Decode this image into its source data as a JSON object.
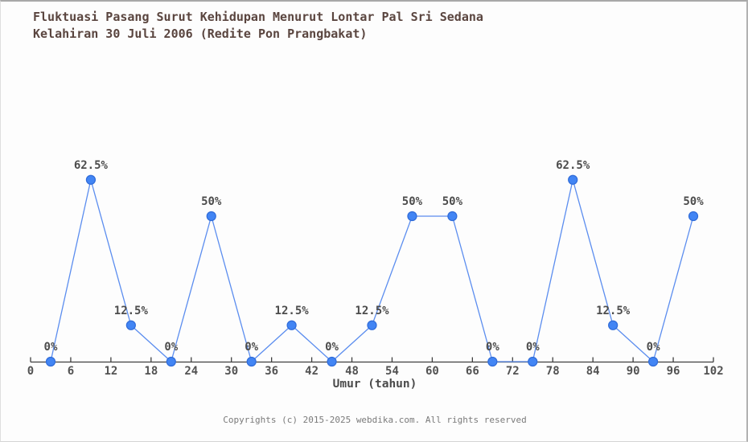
{
  "page": {
    "title_line1": "Fluktuasi Pasang Surut Kehidupan Menurut Lontar Pal Sri Sedana",
    "title_line2": "Kelahiran 30 Juli 2006 (Redite Pon Prangbakat)",
    "footer": "Copyrights (c) 2015-2025 webdika.com. All rights reserved"
  },
  "chart_data": {
    "type": "line",
    "title": "Fluktuasi Pasang Surut Kehidupan Menurut Lontar Pal Sri Sedana Kelahiran 30 Juli 2006 (Redite Pon Prangbakat)",
    "xlabel": "Umur (tahun)",
    "ylabel": "",
    "x": [
      3,
      9,
      15,
      21,
      27,
      33,
      39,
      45,
      51,
      57,
      63,
      69,
      75,
      81,
      87,
      93,
      99
    ],
    "values": [
      0,
      62.5,
      12.5,
      0,
      50,
      0,
      12.5,
      0,
      12.5,
      50,
      50,
      0,
      0,
      62.5,
      12.5,
      0,
      50
    ],
    "point_labels": [
      "0%",
      "62.5%",
      "12.5%",
      "0%",
      "50%",
      "0%",
      "12.5%",
      "0%",
      "12.5%",
      "50%",
      "50%",
      "0%",
      "0%",
      "62.5%",
      "12.5%",
      "0%",
      "50%"
    ],
    "x_ticks": [
      0,
      6,
      12,
      18,
      24,
      30,
      36,
      42,
      48,
      54,
      60,
      66,
      72,
      78,
      84,
      90,
      96,
      102
    ],
    "xlim": [
      0,
      102
    ],
    "ylim": [
      0,
      100
    ],
    "grid": false,
    "legend": "none",
    "marker": "circle",
    "colors": {
      "line": "#5b8def",
      "marker_fill": "#4285f4",
      "marker_border": "#2f6bd8",
      "axis": "#3f3f3f",
      "title_text": "#5a453f",
      "axis_label_text": "#4a4a4a",
      "tick_text": "#525252",
      "point_label_text": "#4c4c4c",
      "footer_text": "#7a7a7a"
    }
  }
}
